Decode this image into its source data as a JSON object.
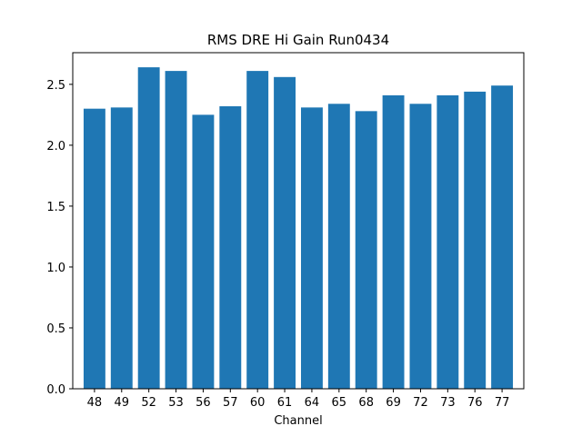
{
  "chart_data": {
    "type": "bar",
    "title": "RMS DRE Hi Gain Run0434",
    "xlabel": "Channel",
    "ylabel": "",
    "categories": [
      "48",
      "49",
      "52",
      "53",
      "56",
      "57",
      "60",
      "61",
      "64",
      "65",
      "68",
      "69",
      "72",
      "73",
      "76",
      "77"
    ],
    "values": [
      2.3,
      2.31,
      2.64,
      2.61,
      2.25,
      2.32,
      2.61,
      2.56,
      2.31,
      2.34,
      2.28,
      2.41,
      2.34,
      2.41,
      2.44,
      2.49
    ],
    "ylim": [
      0,
      2.76
    ],
    "yticks": [
      0.0,
      0.5,
      1.0,
      1.5,
      2.0,
      2.5
    ],
    "ytick_labels": [
      "0.0",
      "0.5",
      "1.0",
      "1.5",
      "2.0",
      "2.5"
    ],
    "bar_color": "#1f77b4",
    "grid": false,
    "legend": "none"
  }
}
